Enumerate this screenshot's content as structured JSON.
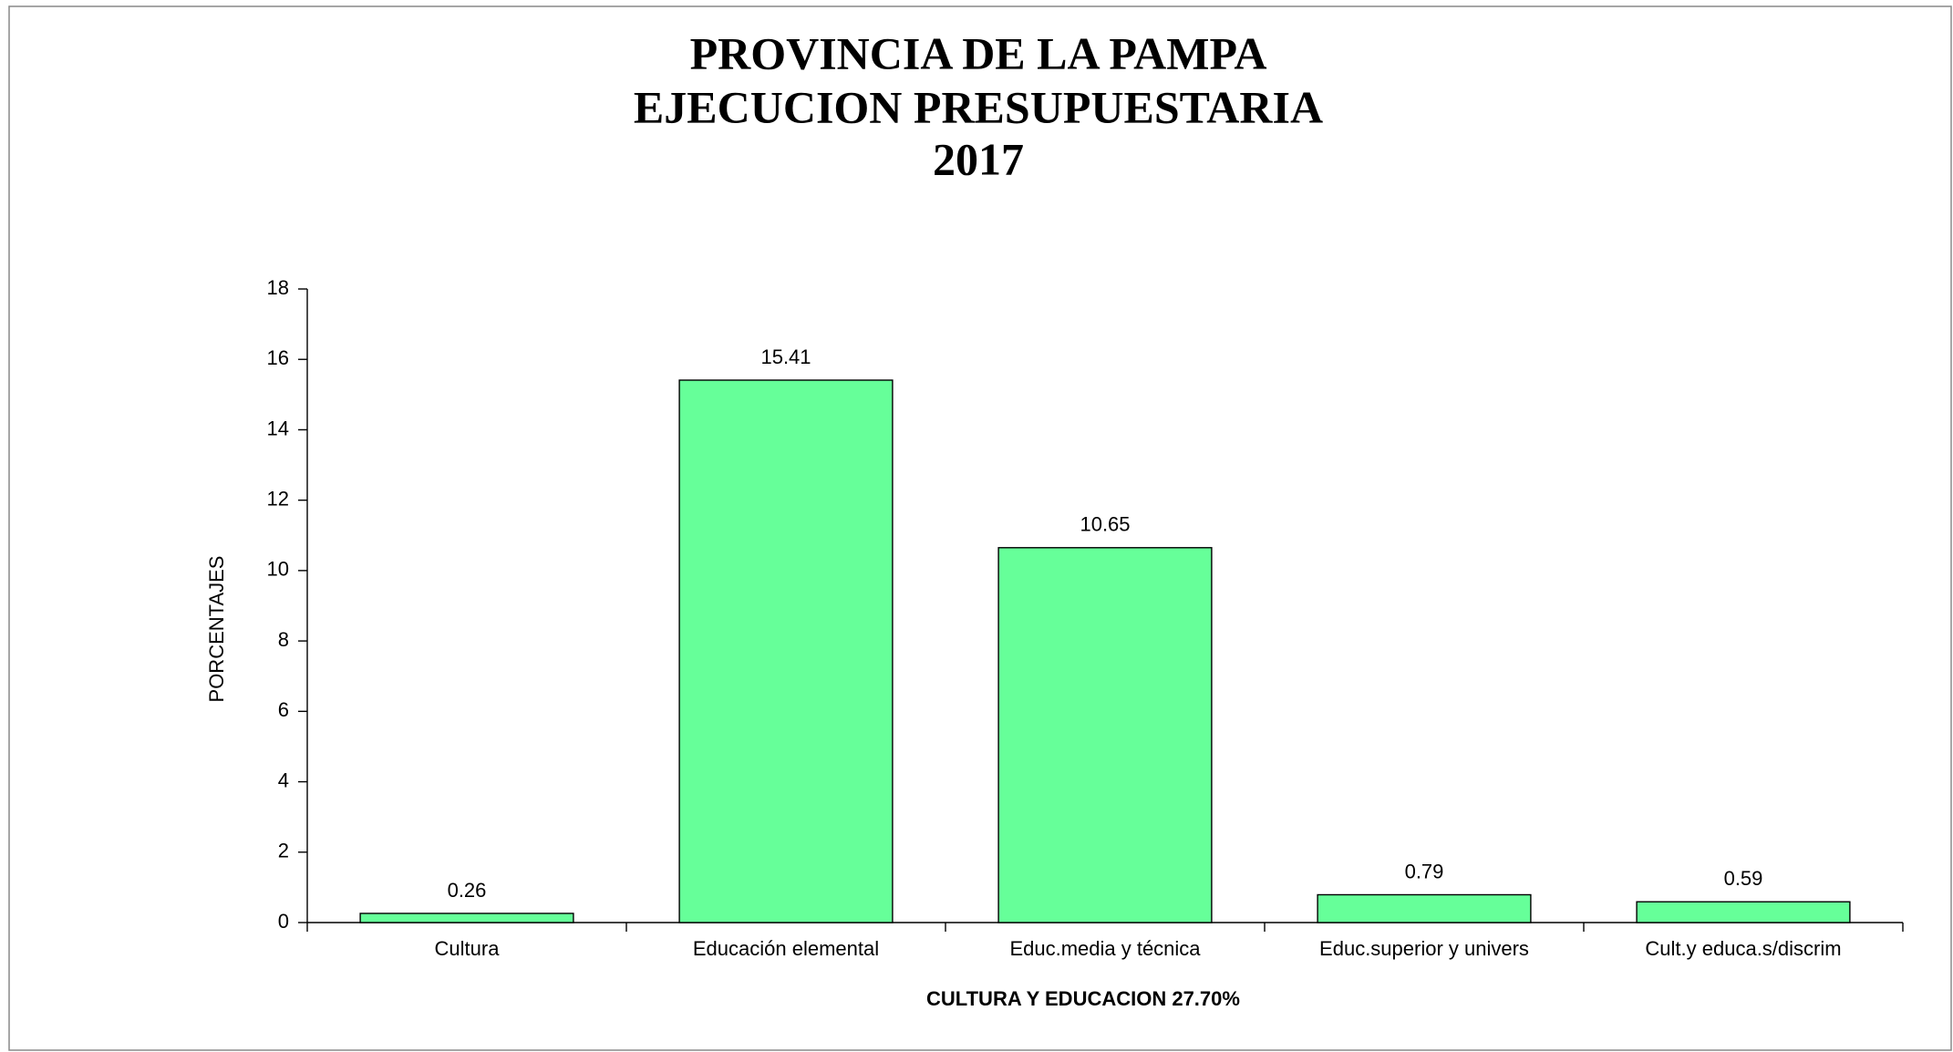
{
  "chart_data": {
    "type": "bar",
    "title": [
      "PROVINCIA DE LA PAMPA",
      "EJECUCION PRESUPUESTARIA",
      "2017"
    ],
    "xlabel": "CULTURA Y EDUCACION 27.70%",
    "ylabel": "PORCENTAJES",
    "categories": [
      "Cultura",
      "Educación elemental",
      "Educ.media y técnica",
      "Educ.superior y univers",
      "Cult.y educa.s/discrim"
    ],
    "values": [
      0.26,
      15.41,
      10.65,
      0.79,
      0.59
    ],
    "color": "#66ff99",
    "ylim": [
      0,
      18
    ],
    "yticks": [
      0,
      2,
      4,
      6,
      8,
      10,
      12,
      14,
      16,
      18
    ],
    "grid": false
  }
}
